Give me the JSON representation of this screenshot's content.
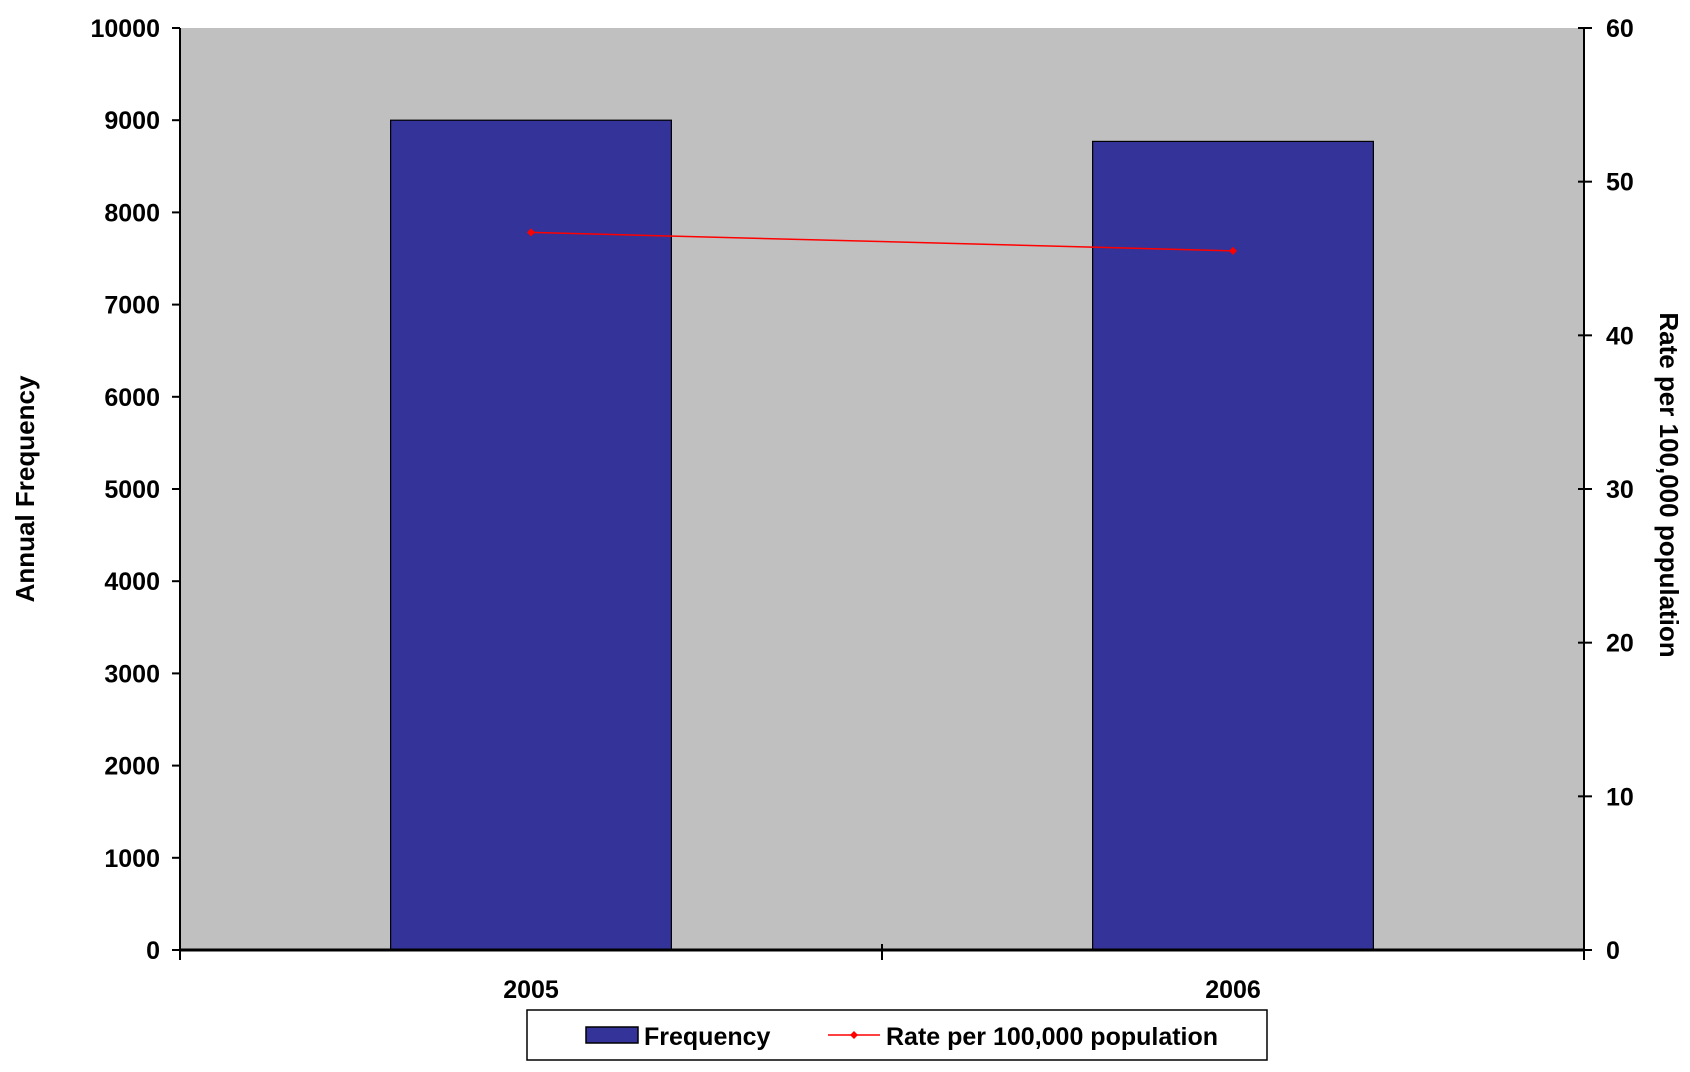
{
  "chart_data": {
    "type": "bar",
    "categories": [
      "2005",
      "2006"
    ],
    "series": [
      {
        "name": "Frequency",
        "type": "bar",
        "axis": "left",
        "values": [
          9000,
          8770
        ]
      },
      {
        "name": "Rate per 100,000 population",
        "type": "line",
        "axis": "right",
        "values": [
          46.7,
          45.5
        ]
      }
    ],
    "ylabel": "Annual Frequency",
    "y2label": "Rate per 100,000 population",
    "ylim": [
      0,
      10000
    ],
    "y2lim": [
      0,
      60
    ],
    "yticks": [
      "0",
      "1000",
      "2000",
      "3000",
      "4000",
      "5000",
      "6000",
      "7000",
      "8000",
      "9000",
      "10000"
    ],
    "y2ticks": [
      "0",
      "10",
      "20",
      "30",
      "40",
      "50",
      "60"
    ],
    "grid": false,
    "legend_position": "bottom",
    "colors": {
      "bar": "#333399",
      "line": "#ff0000",
      "plot_background": "#c0c0c0"
    }
  }
}
